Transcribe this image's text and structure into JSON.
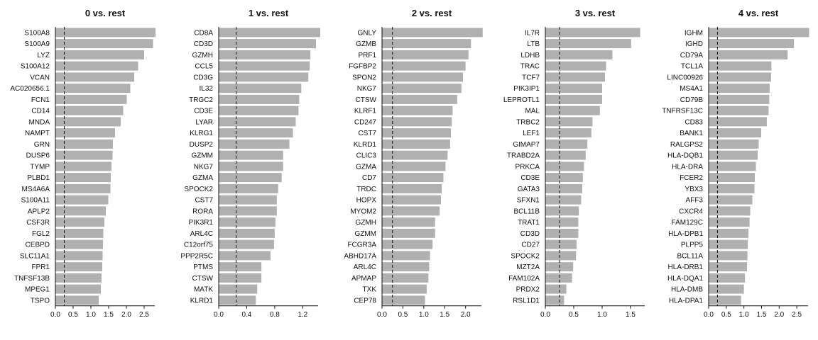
{
  "chart_data": [
    {
      "type": "bar",
      "orientation": "horizontal",
      "title": "0 vs. rest",
      "reference_line_x": 0.25,
      "xlim": [
        0,
        2.8
      ],
      "xticks": [
        0.0,
        0.5,
        1.0,
        1.5,
        2.0,
        2.5
      ],
      "xtick_labels": [
        "0.0",
        "0.5",
        "1.0",
        "1.5",
        "2.0",
        "2.5"
      ],
      "categories": [
        "S100A8",
        "S100A9",
        "LYZ",
        "S100A12",
        "VCAN",
        "AC020656.1",
        "FCN1",
        "CD14",
        "MNDA",
        "NAMPT",
        "GRN",
        "DUSP6",
        "TYMP",
        "PLBD1",
        "MS4A6A",
        "S100A11",
        "APLP2",
        "CSF3R",
        "FGL2",
        "CEBPD",
        "SLC11A1",
        "FPR1",
        "TNFSF13B",
        "MPEG1",
        "TSPO"
      ],
      "values": [
        2.82,
        2.75,
        2.5,
        2.33,
        2.22,
        2.11,
        2.01,
        1.91,
        1.84,
        1.68,
        1.62,
        1.61,
        1.58,
        1.56,
        1.55,
        1.49,
        1.42,
        1.38,
        1.35,
        1.34,
        1.33,
        1.32,
        1.3,
        1.28,
        1.22
      ]
    },
    {
      "type": "bar",
      "orientation": "horizontal",
      "title": "1 vs. rest",
      "reference_line_x": 0.25,
      "xlim": [
        0,
        1.42
      ],
      "xticks": [
        0.0,
        0.4,
        0.8,
        1.2
      ],
      "xtick_labels": [
        "0.0",
        "0.4",
        "0.8",
        "1.2"
      ],
      "categories": [
        "CD8A",
        "CD3D",
        "GZMH",
        "CCL5",
        "CD3G",
        "IL32",
        "TRGC2",
        "CD3E",
        "LYAR",
        "KLRG1",
        "DUSP2",
        "GZMM",
        "NKG7",
        "GZMA",
        "SPOCK2",
        "CST7",
        "RORA",
        "PIK3R1",
        "ARL4C",
        "C12orf75",
        "PPP2R5C",
        "PTMS",
        "CTSW",
        "MATK",
        "KLRD1"
      ],
      "values": [
        1.45,
        1.39,
        1.31,
        1.3,
        1.28,
        1.18,
        1.15,
        1.14,
        1.1,
        1.06,
        1.01,
        0.92,
        0.92,
        0.9,
        0.85,
        0.83,
        0.83,
        0.81,
        0.8,
        0.79,
        0.74,
        0.61,
        0.61,
        0.55,
        0.53
      ]
    },
    {
      "type": "bar",
      "orientation": "horizontal",
      "title": "2 vs. rest",
      "reference_line_x": 0.25,
      "xlim": [
        0,
        2.38
      ],
      "xticks": [
        0.0,
        0.5,
        1.0,
        1.5,
        2.0
      ],
      "xtick_labels": [
        "0.0",
        "0.5",
        "1.0",
        "1.5",
        "2.0"
      ],
      "categories": [
        "GNLY",
        "GZMB",
        "PRF1",
        "FGFBP2",
        "SPON2",
        "NKG7",
        "CTSW",
        "KLRF1",
        "CD247",
        "CST7",
        "KLRD1",
        "CLIC3",
        "GZMA",
        "CD7",
        "TRDC",
        "HOPX",
        "MYOM2",
        "GZMH",
        "GZMM",
        "FCGR3A",
        "ABHD17A",
        "ARL4C",
        "APMAP",
        "TXK",
        "CEP78"
      ],
      "values": [
        2.41,
        2.13,
        2.07,
        2.0,
        1.94,
        1.9,
        1.8,
        1.69,
        1.67,
        1.65,
        1.63,
        1.57,
        1.52,
        1.47,
        1.43,
        1.41,
        1.38,
        1.27,
        1.27,
        1.21,
        1.15,
        1.13,
        1.11,
        1.07,
        1.03
      ]
    },
    {
      "type": "bar",
      "orientation": "horizontal",
      "title": "3 vs. rest",
      "reference_line_x": 0.25,
      "xlim": [
        0,
        1.75
      ],
      "xticks": [
        0.0,
        0.5,
        1.0,
        1.5
      ],
      "xtick_labels": [
        "0.0",
        "0.5",
        "1.0",
        "1.5"
      ],
      "categories": [
        "IL7R",
        "LTB",
        "LDHB",
        "TRAC",
        "TCF7",
        "PIK3IP1",
        "LEPROTL1",
        "MAL",
        "TRBC2",
        "LEF1",
        "GIMAP7",
        "TRABD2A",
        "PRKCA",
        "CD3E",
        "GATA3",
        "SFXN1",
        "BCL11B",
        "TRAT1",
        "CD3D",
        "CD27",
        "SPOCK2",
        "MZT2A",
        "FAM102A",
        "PRDX2",
        "RSL1D1"
      ],
      "values": [
        1.67,
        1.51,
        1.18,
        1.07,
        1.05,
        1.0,
        1.0,
        0.96,
        0.83,
        0.81,
        0.74,
        0.71,
        0.68,
        0.66,
        0.65,
        0.63,
        0.59,
        0.58,
        0.58,
        0.55,
        0.54,
        0.49,
        0.47,
        0.37,
        0.33
      ]
    },
    {
      "type": "bar",
      "orientation": "horizontal",
      "title": "4 vs. rest",
      "reference_line_x": 0.25,
      "xlim": [
        0,
        2.82
      ],
      "xticks": [
        0.0,
        0.5,
        1.0,
        1.5,
        2.0,
        2.5
      ],
      "xtick_labels": [
        "0.0",
        "0.5",
        "1.0",
        "1.5",
        "2.0",
        "2.5"
      ],
      "categories": [
        "IGHM",
        "IGHD",
        "CD79A",
        "TCL1A",
        "LINC00926",
        "MS4A1",
        "CD79B",
        "TNFRSF13C",
        "CD83",
        "BANK1",
        "RALGPS2",
        "HLA-DQB1",
        "HLA-DRA",
        "FCER2",
        "YBX3",
        "AFF3",
        "CXCR4",
        "FAM129C",
        "HLA-DPB1",
        "PLPP5",
        "BCL11A",
        "HLA-DRB1",
        "HLA-DQA1",
        "HLA-DMB",
        "HLA-DPA1"
      ],
      "values": [
        2.85,
        2.42,
        2.24,
        1.78,
        1.77,
        1.73,
        1.72,
        1.7,
        1.65,
        1.49,
        1.42,
        1.39,
        1.34,
        1.31,
        1.3,
        1.24,
        1.18,
        1.16,
        1.13,
        1.11,
        1.1,
        1.09,
        1.03,
        1.0,
        0.92
      ]
    }
  ]
}
